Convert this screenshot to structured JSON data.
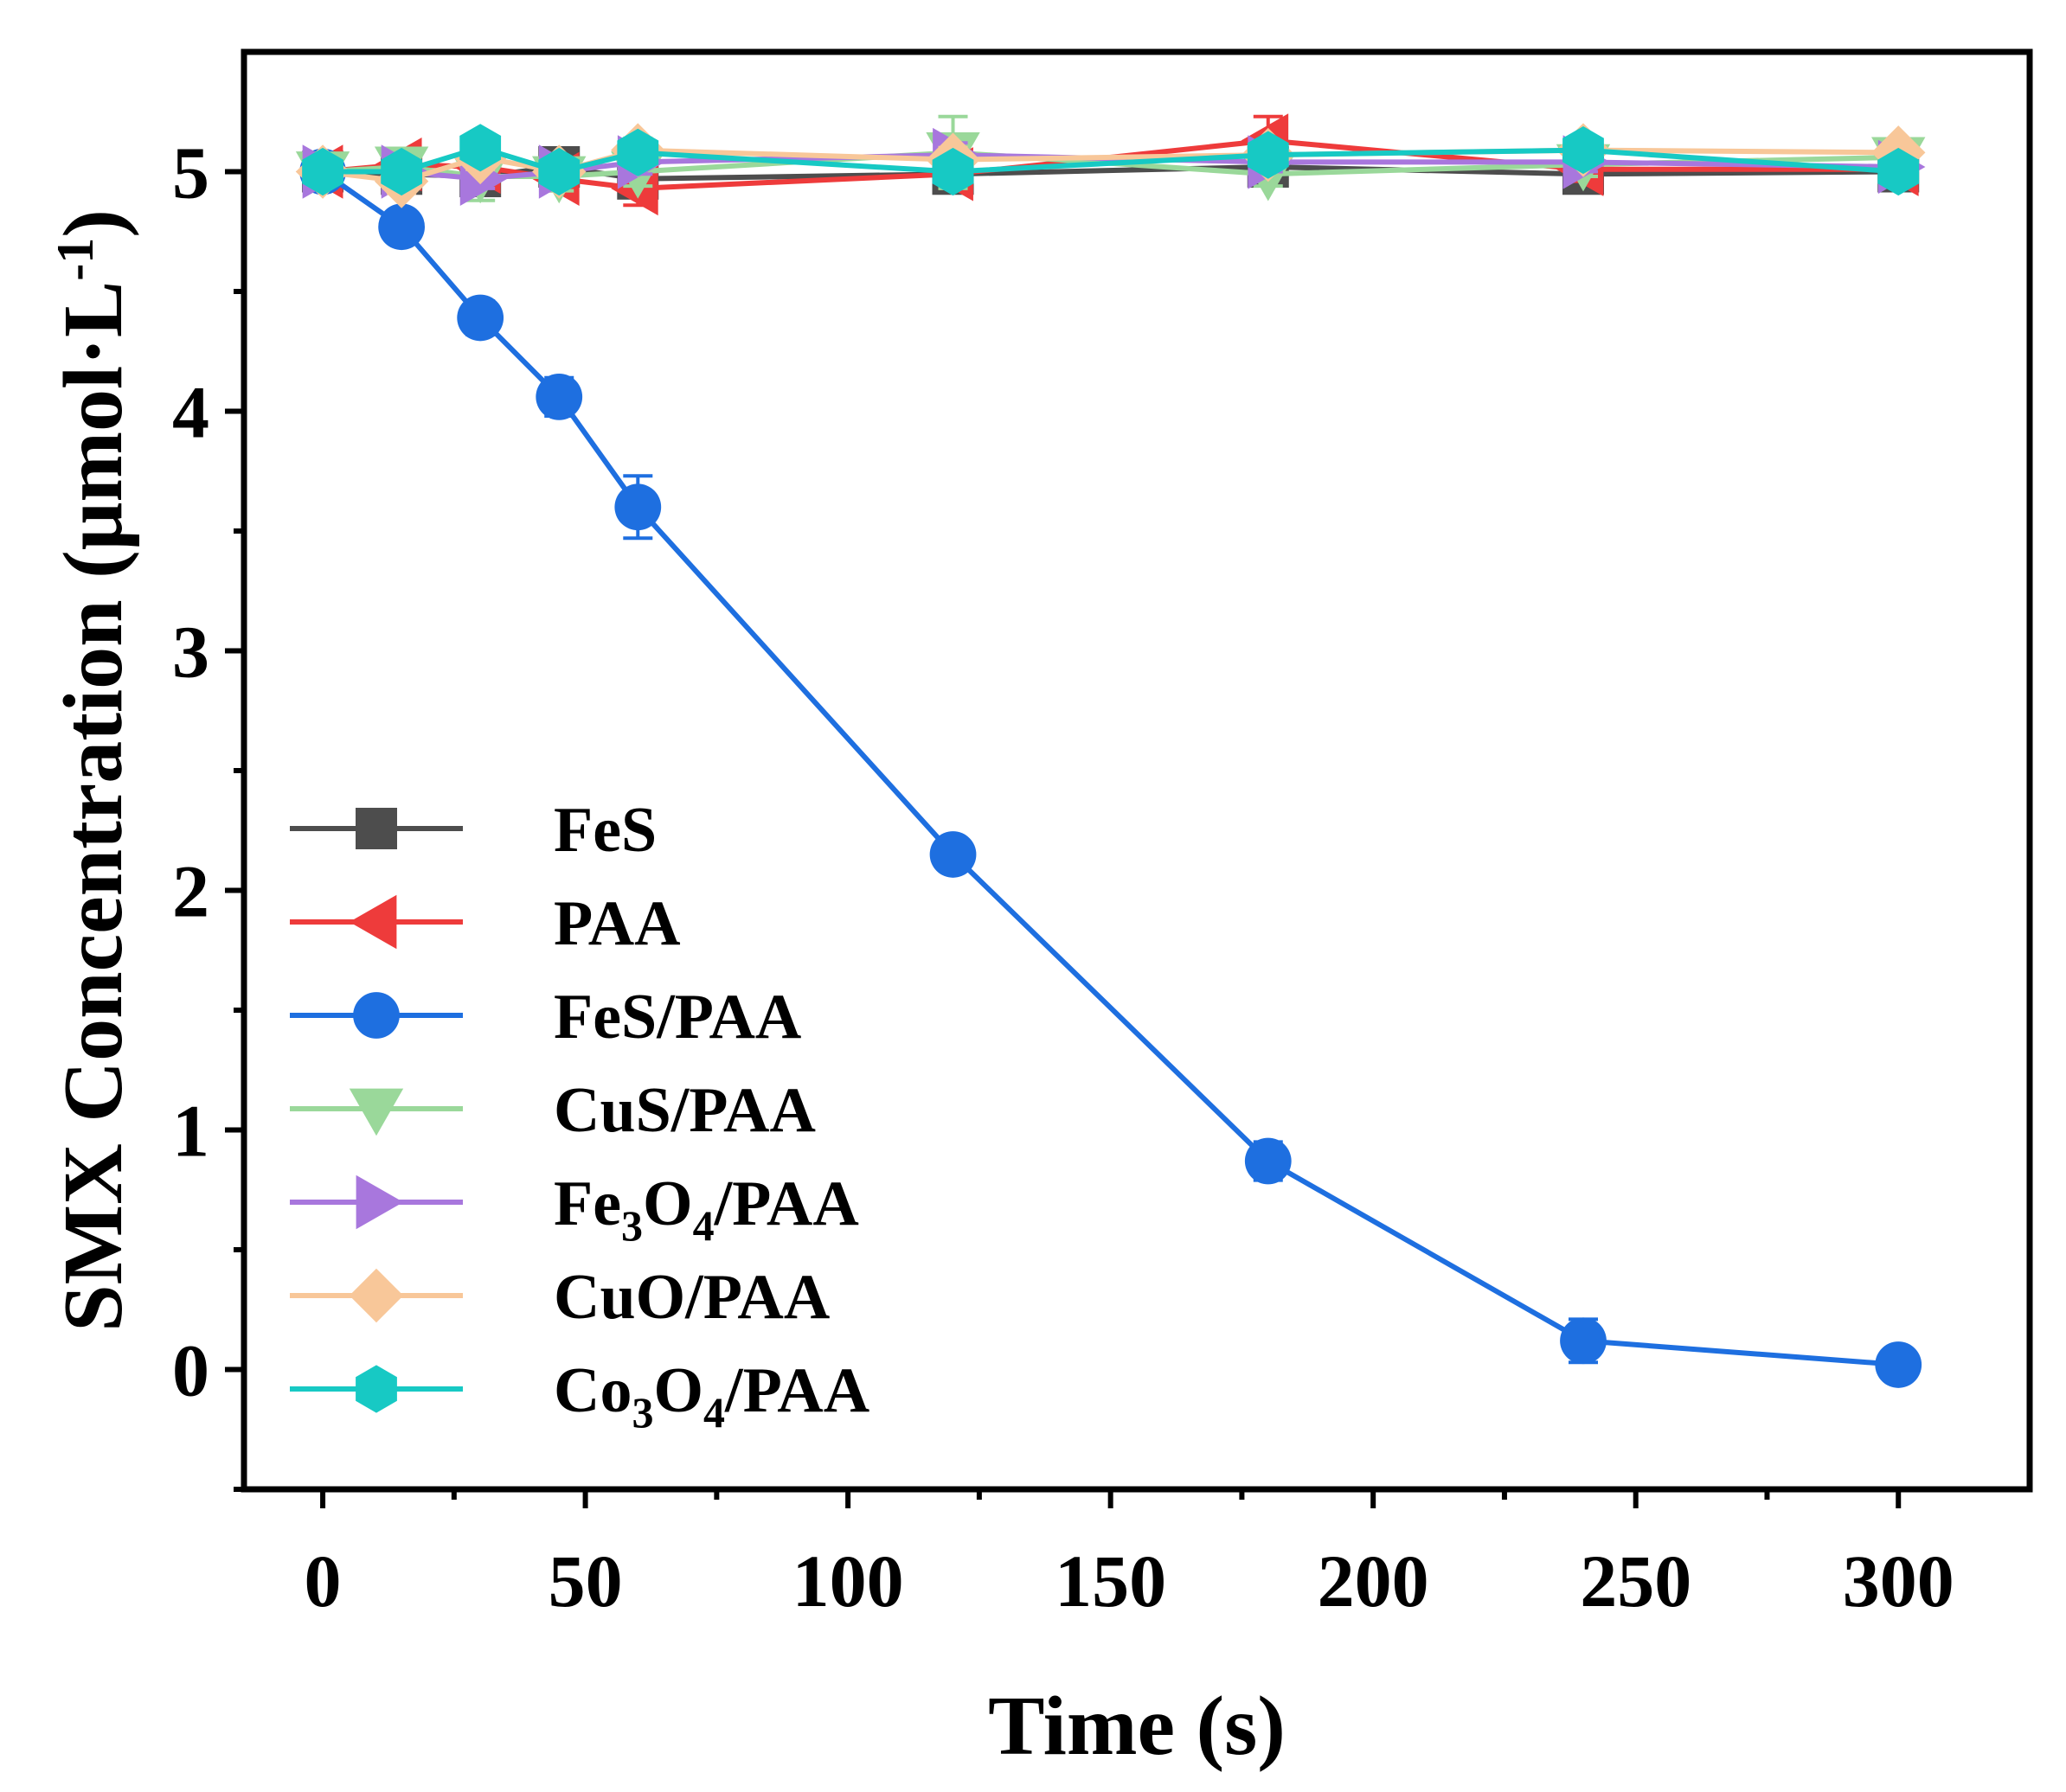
{
  "chart_data": {
    "type": "line",
    "title": "",
    "xlabel": "Time (s)",
    "ylabel": "SMX Concentration (μmol·L⁻¹)",
    "ylabel_parts": {
      "main": "SMX Concentration (μmol·L",
      "sup": "-1",
      "close": ")"
    },
    "xlim": [
      -15,
      325
    ],
    "ylim": [
      -0.5,
      5.5
    ],
    "x_major_ticks": [
      0,
      50,
      100,
      150,
      200,
      250,
      300
    ],
    "x_tick_labels": [
      "0",
      "50",
      "100",
      "150",
      "200",
      "250",
      "300"
    ],
    "x_minor_ticks": [
      25,
      75,
      125,
      175,
      225,
      275
    ],
    "y_major_ticks": [
      0,
      1,
      2,
      3,
      4,
      5
    ],
    "y_tick_labels": [
      "0",
      "1",
      "2",
      "3",
      "4",
      "5"
    ],
    "y_minor_ticks": [
      -0.5,
      0.5,
      1.5,
      2.5,
      3.5,
      4.5
    ],
    "grid": false,
    "legend_position": "bottom-left",
    "x": [
      0,
      15,
      30,
      45,
      60,
      120,
      180,
      240,
      300
    ],
    "series": [
      {
        "name": "FeS",
        "legend": {
          "main": "FeS"
        },
        "color": "#4d4d4d",
        "marker": "square",
        "values": [
          5.0,
          4.99,
          4.98,
          5.02,
          4.97,
          4.99,
          5.02,
          4.99,
          5.0
        ],
        "errors": [
          0.03,
          0.03,
          0.05,
          0.05,
          0.06,
          0.05,
          0.05,
          0.05,
          0.05
        ]
      },
      {
        "name": "PAA",
        "legend": {
          "main": "PAA"
        },
        "color": "#ee3b3b",
        "marker": "triangle-left",
        "values": [
          5.0,
          5.03,
          5.02,
          4.97,
          4.93,
          4.99,
          5.13,
          5.01,
          5.01
        ],
        "errors": [
          0.03,
          0.06,
          0.05,
          0.05,
          0.07,
          0.06,
          0.1,
          0.05,
          0.04
        ]
      },
      {
        "name": "FeS/PAA",
        "legend": {
          "main": "FeS/PAA"
        },
        "color": "#1e6fe0",
        "marker": "circle",
        "values": [
          5.0,
          4.77,
          4.39,
          4.06,
          3.6,
          2.15,
          0.87,
          0.12,
          0.02
        ],
        "errors": [
          0.03,
          0.06,
          0.07,
          0.08,
          0.13,
          0.05,
          0.08,
          0.09,
          0.03
        ]
      },
      {
        "name": "CuS/PAA",
        "legend": {
          "main": "CuS/PAA"
        },
        "color": "#9ad89a",
        "marker": "triangle-down",
        "values": [
          5.0,
          5.02,
          4.98,
          4.98,
          5.0,
          5.08,
          4.99,
          5.03,
          5.06
        ],
        "errors": [
          0.03,
          0.05,
          0.1,
          0.06,
          0.06,
          0.15,
          0.05,
          0.05,
          0.04
        ]
      },
      {
        "name": "Fe3O4/PAA",
        "legend": {
          "main": "Fe",
          "sub1": "3",
          "mid": "O",
          "sub2": "4",
          "tail": "/PAA"
        },
        "color": "#a877dd",
        "marker": "triangle-right",
        "values": [
          5.0,
          5.0,
          4.97,
          5.0,
          5.04,
          5.07,
          5.04,
          5.04,
          5.02
        ],
        "errors": [
          0.03,
          0.04,
          0.04,
          0.05,
          0.05,
          0.05,
          0.04,
          0.04,
          0.03
        ]
      },
      {
        "name": "CuO/PAA",
        "legend": {
          "main": "CuO/PAA"
        },
        "color": "#f8c799",
        "marker": "diamond",
        "values": [
          5.0,
          4.96,
          5.06,
          5.0,
          5.09,
          5.05,
          5.07,
          5.09,
          5.08
        ],
        "errors": [
          0.03,
          0.05,
          0.05,
          0.05,
          0.05,
          0.05,
          0.05,
          0.04,
          0.04
        ]
      },
      {
        "name": "Co3O4/PAA",
        "legend": {
          "main": "Co",
          "sub1": "3",
          "mid": "O",
          "sub2": "4",
          "tail": "/PAA"
        },
        "color": "#17c9c4",
        "marker": "hexagon",
        "values": [
          5.0,
          5.0,
          5.1,
          5.0,
          5.08,
          5.0,
          5.07,
          5.09,
          5.0
        ],
        "errors": [
          0.03,
          0.04,
          0.05,
          0.04,
          0.05,
          0.04,
          0.05,
          0.04,
          0.04
        ]
      }
    ]
  }
}
